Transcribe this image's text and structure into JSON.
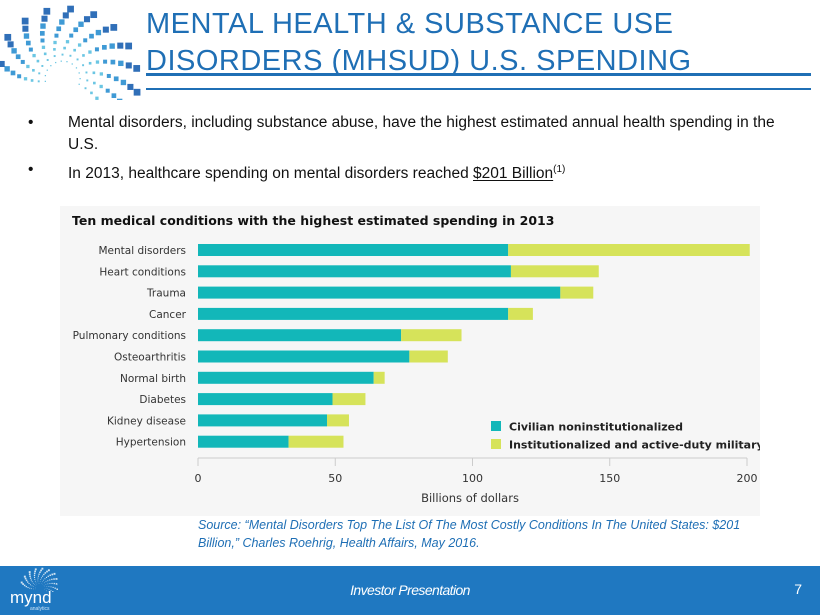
{
  "slide": {
    "title_line1": "MENTAL HEALTH & SUBSTANCE USE",
    "title_line2": "DISORDERS (MHSUD) U.S. SPENDING",
    "bullets": [
      {
        "text": "Mental disorders, including substance abuse, have the highest estimated annual health spending in the U.S."
      },
      {
        "text_prefix": "In 2013, healthcare spending on mental disorders reached ",
        "highlight": "$201 Billion",
        "footnote": "(1)"
      }
    ],
    "source": "Source: “Mental Disorders Top The List Of The Most Costly Conditions In The United States: $201 Billion,” Charles Roehrig, Health Affairs, May 2016.",
    "footer": {
      "brand": "mynd",
      "brand_sub": "analytics",
      "presentation_label": "Investor Presentation",
      "page_number": "7"
    }
  },
  "colors": {
    "title_blue": "#1f6fb5",
    "footer_blue": "#1f78c1",
    "civilian": "#12b7b9",
    "institutional": "#d6e35a",
    "chart_bg": "#f6f6f6"
  },
  "chart_data": {
    "type": "bar",
    "orientation": "horizontal",
    "stacked": true,
    "title": "Ten medical conditions with the highest estimated spending in 2013",
    "xlabel": "Billions of dollars",
    "ylabel": "",
    "xlim": [
      0,
      200
    ],
    "xticks": [
      0,
      50,
      100,
      150,
      200
    ],
    "grid": false,
    "legend_position": "bottom-right",
    "categories": [
      "Mental disorders",
      "Heart conditions",
      "Trauma",
      "Cancer",
      "Pulmonary conditions",
      "Osteoarthritis",
      "Normal birth",
      "Diabetes",
      "Kidney disease",
      "Hypertension"
    ],
    "series": [
      {
        "name": "Civilian noninstitutionalized",
        "values": [
          113,
          114,
          132,
          113,
          74,
          77,
          64,
          49,
          47,
          33
        ]
      },
      {
        "name": "Institutionalized and active-duty military",
        "values": [
          88,
          32,
          12,
          9,
          22,
          14,
          4,
          12,
          8,
          20
        ]
      }
    ]
  }
}
